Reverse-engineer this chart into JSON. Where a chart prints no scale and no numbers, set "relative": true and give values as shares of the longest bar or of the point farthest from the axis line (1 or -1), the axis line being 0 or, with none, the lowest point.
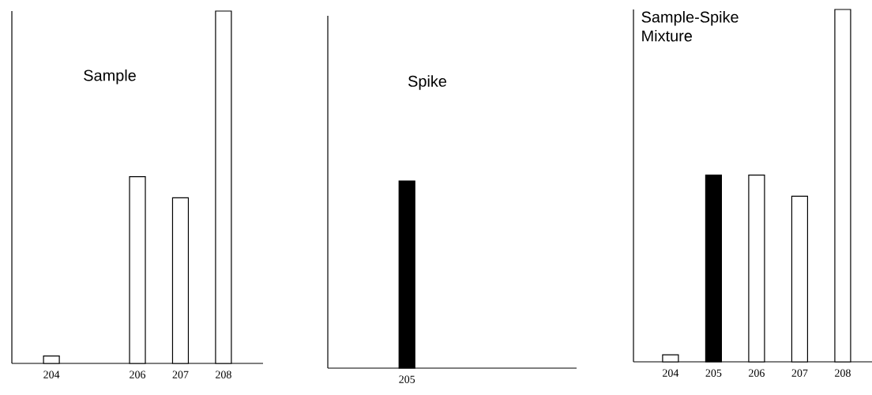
{
  "chart_data": [
    {
      "type": "bar",
      "title": "Sample",
      "relative": true,
      "categories": [
        "204",
        null,
        "206",
        "207",
        "208"
      ],
      "values": [
        0.021,
        null,
        0.53,
        0.47,
        1
      ],
      "colors": [
        "#ffffff",
        "#ffffff",
        "#ffffff",
        "#ffffff",
        "#ffffff"
      ]
    },
    {
      "type": "bar",
      "title": "Spike",
      "relative": true,
      "categories": [
        "205"
      ],
      "values": [
        1
      ],
      "colors": [
        "#000000"
      ]
    },
    {
      "type": "bar",
      "title": "Sample-Spike Mixture",
      "relative": true,
      "categories": [
        "204",
        "205",
        "206",
        "207",
        "208"
      ],
      "values": [
        0.02,
        0.53,
        0.53,
        0.47,
        1
      ],
      "colors": [
        "#ffffff",
        "#000000",
        "#ffffff",
        "#ffffff",
        "#ffffff"
      ]
    }
  ]
}
